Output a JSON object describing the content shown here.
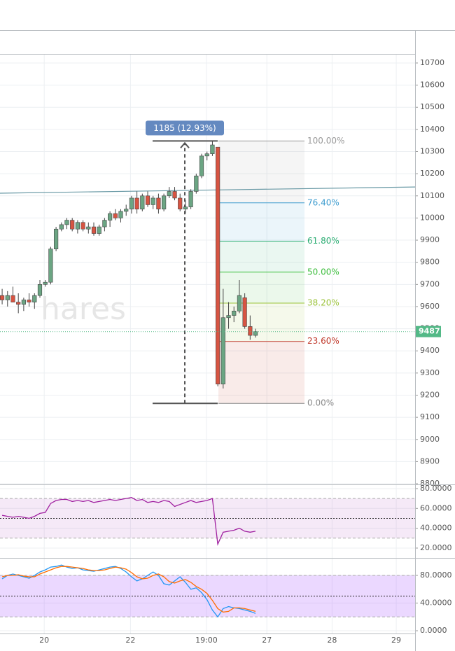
{
  "chart_data": [
    {
      "type": "candlestick",
      "watermark": "hares",
      "xlim": [
        -0.4,
        76.6
      ],
      "ylim": [
        8797,
        10741
      ],
      "yticks": [
        10700,
        10600,
        10500,
        10400,
        10300,
        10200,
        10100,
        10000,
        9900,
        9800,
        9700,
        9600,
        9500,
        9400,
        9300,
        9200,
        9100,
        9000,
        8900,
        8800
      ],
      "grid": true,
      "up_color": "#6ba583",
      "down_color": "#d75442",
      "open": [
        9650,
        9630,
        9650,
        9620,
        9610,
        9630,
        9620,
        9650,
        9700,
        9710,
        9860,
        9950,
        9970,
        9990,
        9950,
        9980,
        9950,
        9960,
        9930,
        9960,
        9990,
        10020,
        10000,
        10030,
        10040,
        10090,
        10040,
        10100,
        10060,
        10090,
        10040,
        10100,
        10120,
        10090,
        10040,
        10050,
        10120,
        10190,
        10280,
        10290,
        10320,
        9250,
        9550,
        9560,
        9580,
        9640,
        9510,
        9470
      ],
      "high": [
        9680,
        9670,
        9690,
        9660,
        9640,
        9660,
        9660,
        9720,
        9720,
        9870,
        9960,
        9980,
        10000,
        10000,
        9990,
        9990,
        9980,
        9980,
        9970,
        10000,
        10030,
        10040,
        10040,
        10060,
        10100,
        10120,
        10110,
        10120,
        10100,
        10110,
        10110,
        10140,
        10140,
        10110,
        10080,
        10130,
        10200,
        10290,
        10300,
        10348,
        10320,
        9680,
        9620,
        9600,
        9720,
        9660,
        9560,
        9500
      ],
      "low": [
        9610,
        9600,
        9620,
        9570,
        9580,
        9600,
        9590,
        9640,
        9690,
        9700,
        9850,
        9940,
        9950,
        9940,
        9930,
        9940,
        9930,
        9920,
        9920,
        9940,
        9960,
        9990,
        9980,
        10010,
        10020,
        10020,
        10030,
        10050,
        10040,
        10020,
        10030,
        10090,
        10080,
        10030,
        10020,
        10040,
        10110,
        10180,
        10260,
        10280,
        9240,
        9230,
        9500,
        9530,
        9570,
        9500,
        9450,
        9460
      ],
      "close": [
        9630,
        9650,
        9620,
        9610,
        9630,
        9620,
        9650,
        9700,
        9710,
        9860,
        9950,
        9970,
        9990,
        9950,
        9980,
        9950,
        9960,
        9930,
        9960,
        9990,
        10020,
        10000,
        10030,
        10040,
        10090,
        10040,
        10100,
        10060,
        10090,
        10040,
        10100,
        10120,
        10090,
        10040,
        10050,
        10120,
        10190,
        10280,
        10290,
        10330,
        9250,
        9550,
        9560,
        9580,
        9650,
        9510,
        9470,
        9487
      ],
      "trendline": {
        "start": 10112,
        "end": 10140,
        "color": "#6a9aa6"
      },
      "last": 9487,
      "last_color": "#53b987",
      "measure": "1185 (12.93%)",
      "fib": {
        "low": 9163,
        "high": 10348,
        "levels": [
          0,
          23.6,
          38.2,
          50,
          61.8,
          76.4,
          100
        ],
        "level_labels": [
          "0.00%",
          "23.60%",
          "38.20%",
          "50.00%",
          "61.80%",
          "76.40%",
          "100.00%"
        ],
        "colors": [
          "#888888",
          "#c0392b",
          "#9bc23a",
          "#3cbd3c",
          "#2eae74",
          "#3d9ccf",
          "#999999"
        ]
      }
    },
    {
      "type": "line",
      "xlim": [
        -0.4,
        76.6
      ],
      "ylim": [
        10.1,
        84.2
      ],
      "yticks": [
        {
          "value": 80,
          "label": "80.0000"
        },
        {
          "value": 60,
          "label": "60.0000"
        },
        {
          "value": 40,
          "label": "40.0000"
        },
        {
          "value": 20,
          "label": "20.0000"
        }
      ],
      "bands": [
        70,
        30
      ],
      "midline": 50,
      "band_color": "#9c27b0",
      "series": [
        {
          "color": "#a020a0",
          "values": [
            53,
            52,
            51,
            52,
            51,
            50,
            52,
            55,
            56,
            65,
            68,
            69,
            69,
            67,
            68,
            67,
            68,
            66,
            67,
            68,
            69,
            68,
            69,
            70,
            71,
            68,
            69,
            66,
            67,
            66,
            68,
            67,
            62,
            64,
            66,
            68,
            66,
            67,
            68,
            70,
            24,
            36,
            37,
            38,
            40,
            37,
            36,
            37
          ]
        }
      ]
    },
    {
      "type": "line",
      "xlim": [
        -0.4,
        76.6
      ],
      "ylim": [
        -4,
        105.3
      ],
      "yticks": [
        {
          "value": 80,
          "label": "80.0000"
        },
        {
          "value": 40,
          "label": "40.0000"
        },
        {
          "value": 0,
          "label": "0.0000"
        }
      ],
      "bands": [
        80,
        20
      ],
      "midline": 50,
      "band_color": "#a64dff",
      "xticks": [
        {
          "value": 7.8,
          "label": "20"
        },
        {
          "value": 23.8,
          "label": "22"
        },
        {
          "value": 37.9,
          "label": "19:00"
        },
        {
          "value": 49.1,
          "label": "27"
        },
        {
          "value": 61.2,
          "label": "28"
        },
        {
          "value": 73.1,
          "label": "29"
        }
      ],
      "series": [
        {
          "color": "#2196f3",
          "values": [
            75,
            80,
            82,
            80,
            78,
            76,
            80,
            85,
            88,
            92,
            93,
            95,
            92,
            90,
            91,
            88,
            87,
            86,
            88,
            90,
            92,
            93,
            90,
            85,
            78,
            72,
            75,
            80,
            85,
            80,
            68,
            66,
            72,
            78,
            70,
            60,
            62,
            55,
            45,
            30,
            20,
            32,
            35,
            33,
            32,
            30,
            28,
            25
          ]
        },
        {
          "color": "#ff6d00",
          "values": [
            78,
            80,
            80,
            81,
            79,
            78,
            78,
            82,
            85,
            88,
            91,
            93,
            93,
            92,
            91,
            90,
            88,
            87,
            87,
            88,
            90,
            92,
            91,
            89,
            84,
            78,
            75,
            76,
            80,
            82,
            78,
            71,
            69,
            72,
            74,
            70,
            64,
            60,
            54,
            44,
            32,
            27,
            28,
            33,
            33,
            32,
            30,
            28
          ]
        }
      ]
    }
  ]
}
